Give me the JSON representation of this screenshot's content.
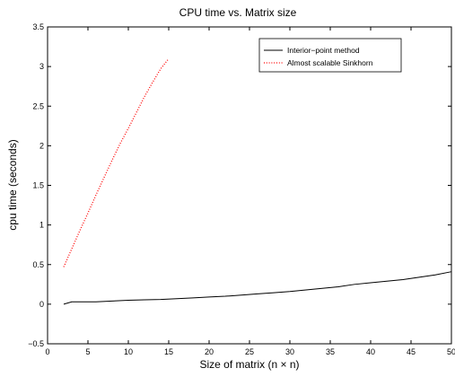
{
  "chart_data": {
    "type": "line",
    "title": "CPU time vs. Matrix size",
    "xlabel": "Size of matrix (n × n)",
    "ylabel": "cpu time (seconds)",
    "xlim": [
      0,
      50
    ],
    "ylim": [
      -0.5,
      3.5
    ],
    "xticks": [
      "0",
      "5",
      "10",
      "15",
      "20",
      "25",
      "30",
      "35",
      "40",
      "45",
      "50"
    ],
    "yticks": [
      "−0.5",
      "0",
      "0.5",
      "1",
      "1.5",
      "2",
      "2.5",
      "3",
      "3.5"
    ],
    "grid": false,
    "legend_position": "top-right",
    "series": [
      {
        "name": "Interior−point method",
        "color": "#000000",
        "style": "solid",
        "x": [
          2,
          3,
          4,
          6,
          8,
          10,
          12,
          14,
          16,
          18,
          20,
          22,
          24,
          26,
          28,
          30,
          32,
          34,
          36,
          38,
          40,
          42,
          44,
          46,
          48,
          50
        ],
        "y": [
          0.0,
          0.03,
          0.03,
          0.03,
          0.04,
          0.05,
          0.055,
          0.06,
          0.07,
          0.08,
          0.09,
          0.1,
          0.115,
          0.13,
          0.145,
          0.16,
          0.18,
          0.2,
          0.22,
          0.25,
          0.27,
          0.29,
          0.31,
          0.34,
          0.37,
          0.41
        ]
      },
      {
        "name": "Almost scalable Sinkhorn",
        "color": "#ff0000",
        "style": "dotted",
        "x": [
          2,
          3,
          4,
          5,
          6,
          7,
          8,
          9,
          10,
          11,
          12,
          13,
          14,
          15
        ],
        "y": [
          0.47,
          0.7,
          0.93,
          1.15,
          1.38,
          1.6,
          1.82,
          2.03,
          2.22,
          2.42,
          2.62,
          2.8,
          2.97,
          3.1
        ]
      }
    ]
  }
}
